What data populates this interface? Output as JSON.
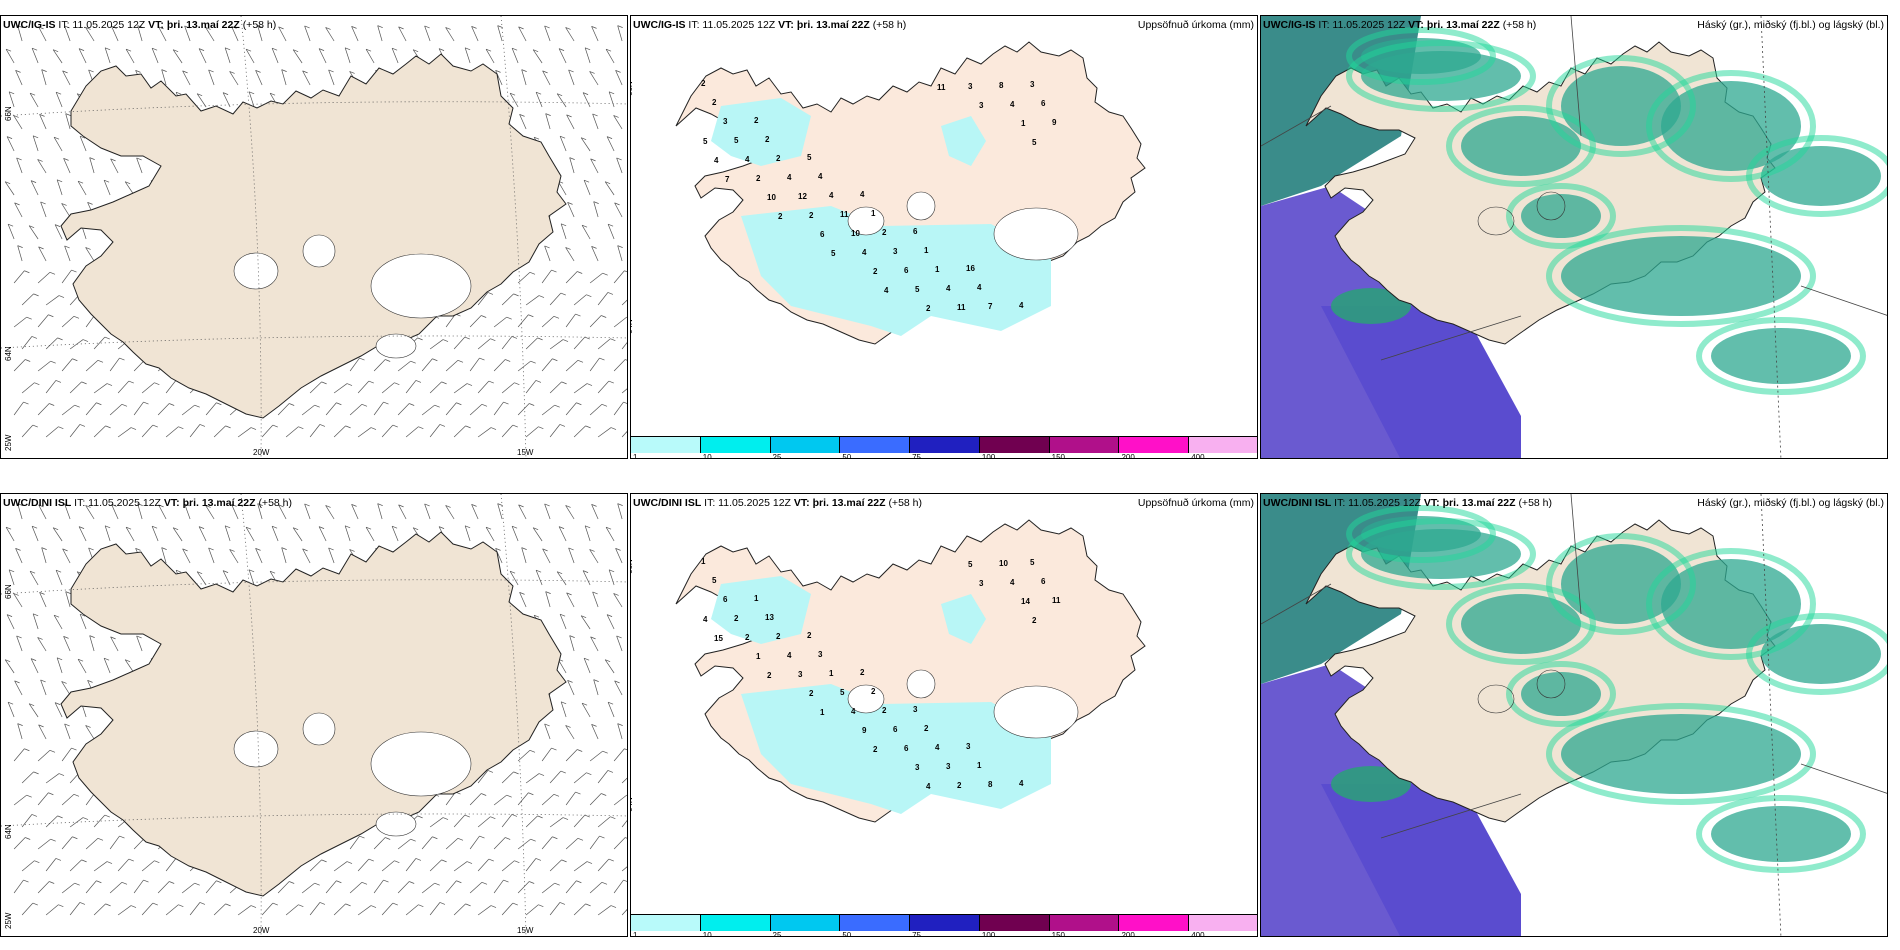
{
  "rows": [
    {
      "model": "UWC/IG-IS",
      "wind": {
        "header": {
          "model": "UWC/IG-IS",
          "it": "IT: 11.05.2025 12Z",
          "vt_label": "VT:",
          "vt": "þri. 13.maí 22Z",
          "lead": "(+58 h)"
        }
      },
      "precip": {
        "header": {
          "model": "UWC/IG-IS",
          "it": "IT: 11.05.2025 12Z",
          "vt_label": "VT:",
          "vt": "þri. 13.maí 22Z",
          "lead": "(+58 h)"
        },
        "title": "Uppsöfnuð úrkoma (mm)",
        "labels": [
          "2",
          "2",
          "5",
          "4",
          "6",
          "16",
          "4",
          "2",
          "2",
          "4",
          "1",
          "1",
          "4",
          "3",
          "3",
          "2",
          "4",
          "2",
          "1",
          "7",
          "6",
          "5",
          "4",
          "11",
          "3",
          "4",
          "8",
          "9",
          "4",
          "12",
          "10",
          "6",
          "11",
          "4",
          "5",
          "2",
          "2",
          "4",
          "5",
          "3",
          "1",
          "4",
          "10",
          "6",
          "2",
          "2",
          "3",
          "5",
          "7",
          "2",
          "5",
          "4",
          "11"
        ]
      },
      "cloud": {
        "header": {
          "model": "UWC/IG-IS",
          "it": "IT: 11.05.2025 12Z",
          "vt_label": "VT:",
          "vt": "þri. 13.maí 22Z",
          "lead": "(+58 h)"
        },
        "title": "Háský (gr.), miðský (fj.bl.) og lágský (bl.)"
      }
    },
    {
      "model": "UWC/DINI ISL",
      "wind": {
        "header": {
          "model": "UWC/DINI ISL",
          "it": "IT: 11.05.2025 12Z",
          "vt_label": "VT:",
          "vt": "þri. 13.maí 22Z",
          "lead": "(+58 h)"
        }
      },
      "precip": {
        "header": {
          "model": "UWC/DINI ISL",
          "it": "IT: 11.05.2025 12Z",
          "vt_label": "VT:",
          "vt": "þri. 13.maí 22Z",
          "lead": "(+58 h)"
        },
        "title": "Uppsöfnuð úrkoma (mm)",
        "labels": [
          "1",
          "1",
          "2",
          "2",
          "3",
          "3",
          "4",
          "5",
          "13",
          "3",
          "2",
          "2",
          "1",
          "5",
          "6",
          "2",
          "1",
          "2",
          "4",
          "8",
          "6",
          "2",
          "4",
          "5",
          "6",
          "3",
          "10",
          "11",
          "2",
          "3",
          "4",
          "6",
          "2",
          "4",
          "4",
          "1",
          "2",
          "9",
          "3",
          "5",
          "14",
          "15",
          "2",
          "1",
          "2",
          "4",
          "3",
          "2"
        ]
      },
      "cloud": {
        "header": {
          "model": "UWC/DINI ISL",
          "it": "IT: 11.05.2025 12Z",
          "vt_label": "VT:",
          "vt": "þri. 13.maí 22Z",
          "lead": "(+58 h)"
        },
        "title": "Háský (gr.), miðský (fj.bl.) og lágský (bl.)"
      }
    }
  ],
  "axes": {
    "lat_top": "66N",
    "lat_mid": "64N",
    "lon_left": "25W",
    "lon_a": "20W",
    "lon_b": "15W"
  },
  "colorbar": {
    "ticks": [
      "1",
      "10",
      "25",
      "50",
      "75",
      "100",
      "150",
      "200",
      "400"
    ],
    "colors": [
      "#b8fafa",
      "#00eeee",
      "#00c8f0",
      "#3a6cff",
      "#2020c0",
      "#700050",
      "#b0108a",
      "#ff10c8",
      "#f8b0f0"
    ]
  },
  "colors": {
    "land": "#f0e4d4",
    "land_precip": "#fbe9dc",
    "precip": "#b8f6f6",
    "sea_mid": "#6a5ad0",
    "cloud_high": "#2ea890"
  }
}
